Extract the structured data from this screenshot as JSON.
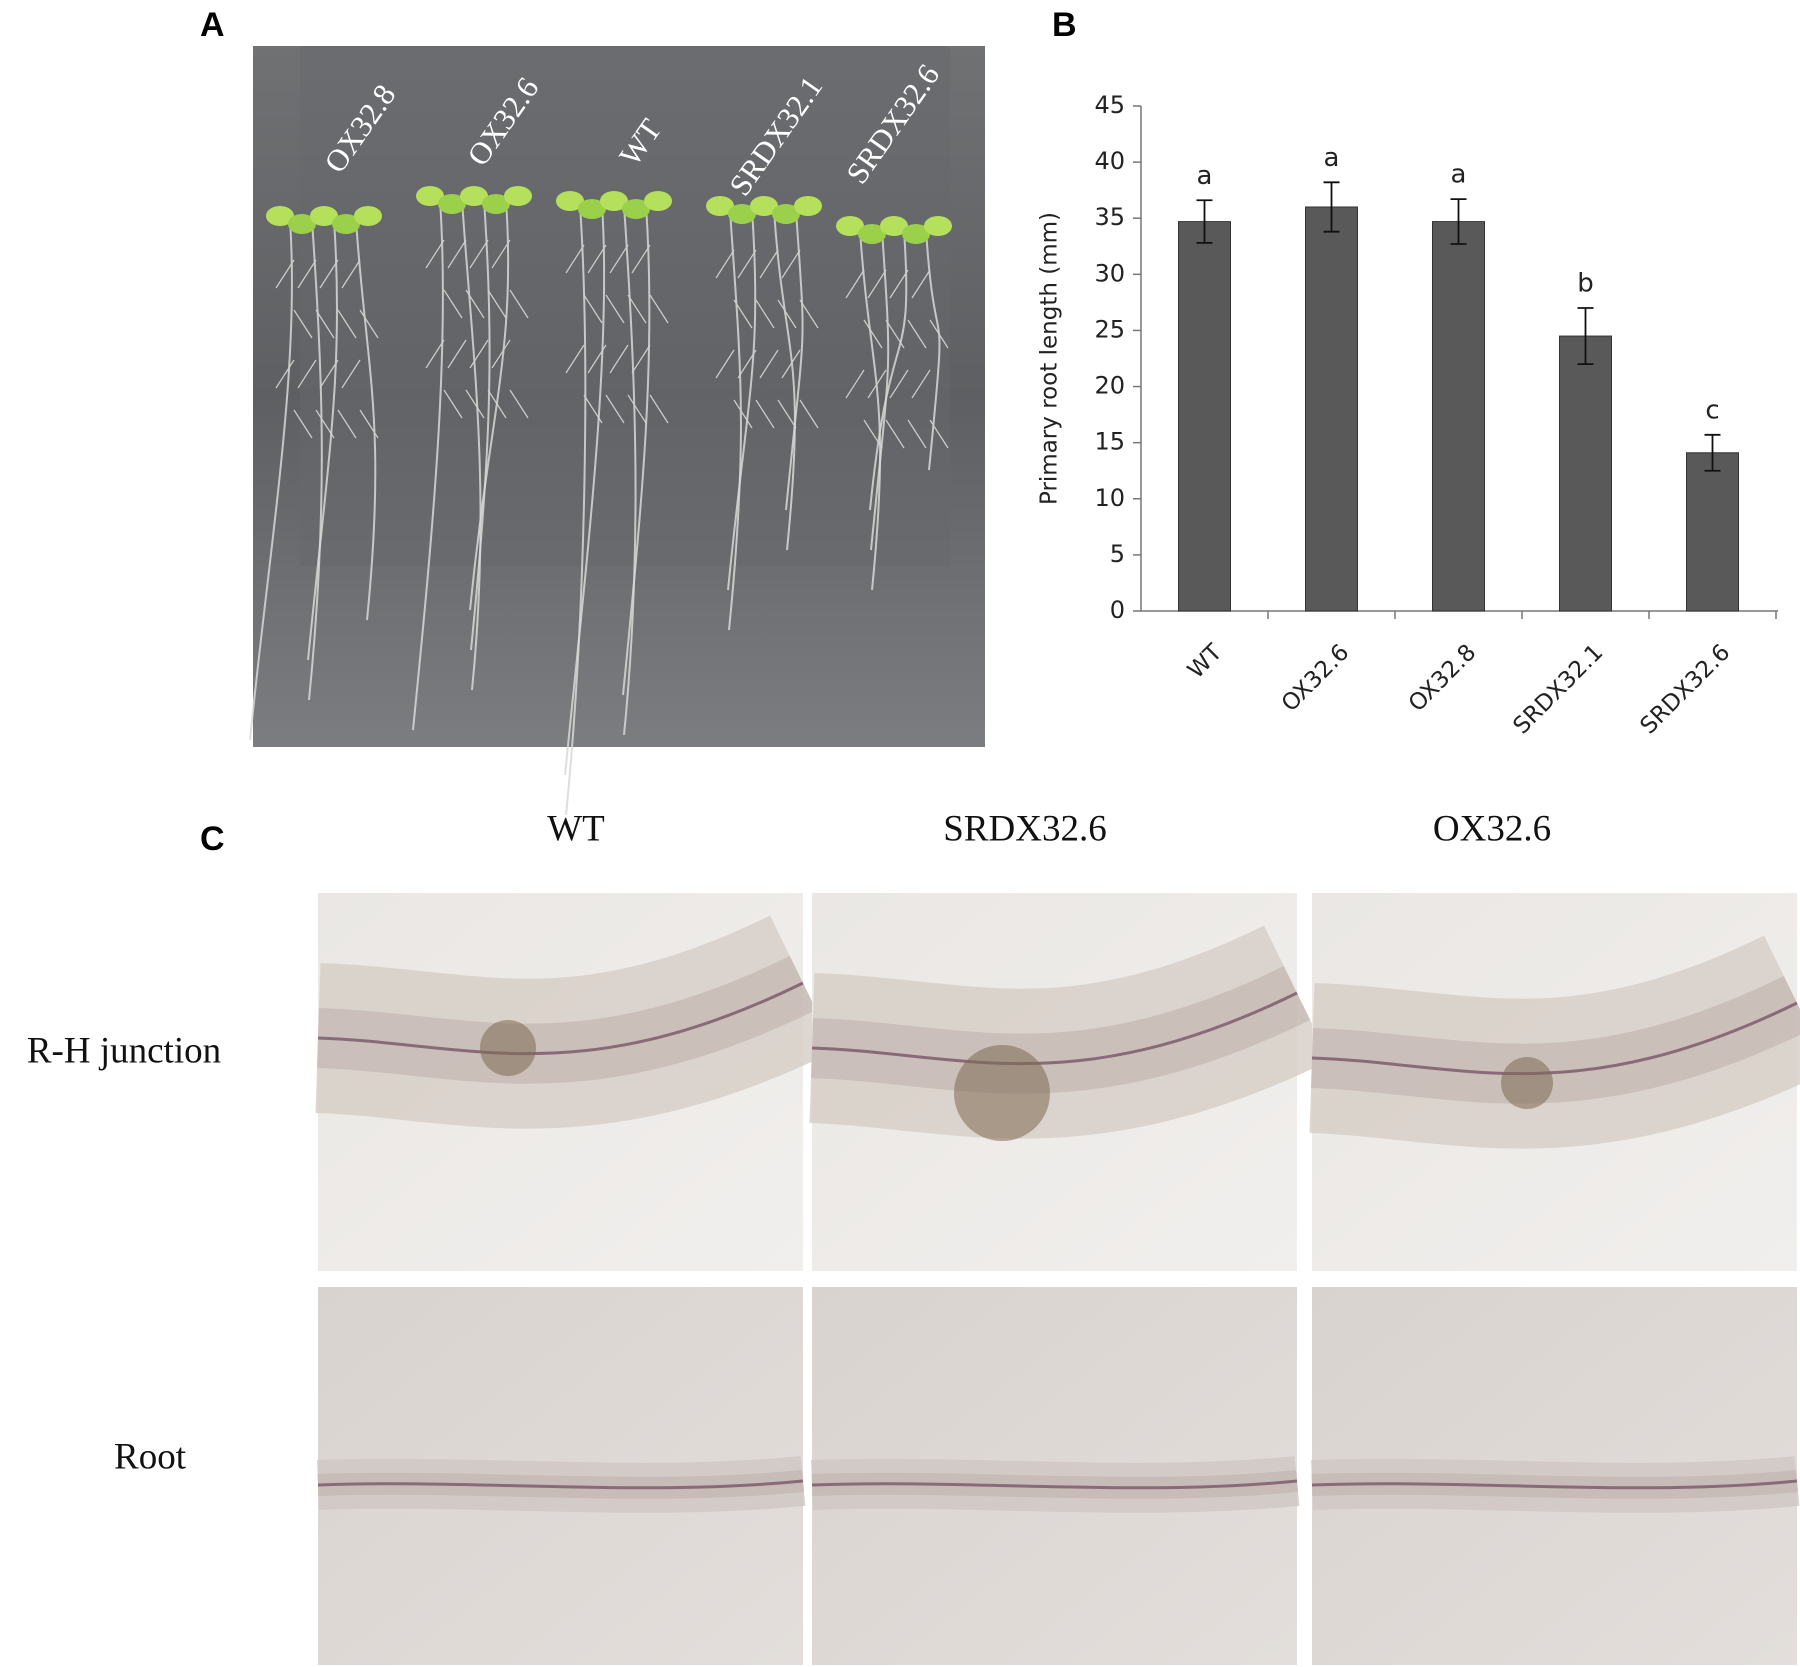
{
  "panel_labels": [
    "A",
    "B",
    "C"
  ],
  "plate_labels": [
    "OX32.8",
    "OX32.6",
    "WT",
    "SRDX32.1",
    "SRDX32.6"
  ],
  "chart_data": {
    "type": "bar",
    "y_label": "Primary root length (mm)",
    "categories": [
      "WT",
      "OX32.6",
      "OX32.8",
      "SRDX32.1",
      "SRDX32.6"
    ],
    "values": [
      34.7,
      36,
      34.7,
      24.5,
      14.1
    ],
    "errors": [
      1.9,
      2.2,
      2,
      2.5,
      1.6
    ],
    "annotations": [
      "a",
      "a",
      "a",
      "b",
      "c"
    ],
    "color": "#595959",
    "ylim": [
      0,
      45
    ],
    "yticks": [
      0,
      5,
      10,
      15,
      20,
      25,
      30,
      35,
      40,
      45
    ]
  },
  "micrographs": {
    "columns": [
      "WT",
      "SRDX32.6",
      "OX32.6"
    ],
    "rows": [
      "R-H junction",
      "Root"
    ]
  }
}
